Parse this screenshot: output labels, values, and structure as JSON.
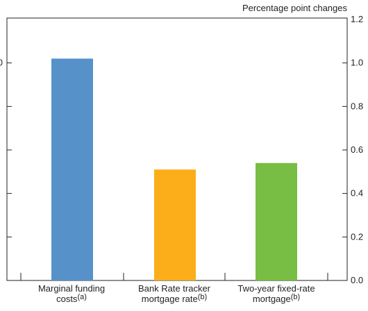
{
  "chart_data": {
    "type": "bar",
    "units_label": "Percentage point changes",
    "categories": [
      {
        "line1": "Marginal funding",
        "line2": "costs",
        "note": "(a)"
      },
      {
        "line1": "Bank Rate tracker",
        "line2": "mortgage rate",
        "note": "(b)"
      },
      {
        "line1": "Two-year fixed-rate",
        "line2": "mortgage",
        "note": "(b)"
      }
    ],
    "values": [
      1.02,
      0.51,
      0.54
    ],
    "colors": [
      "#5692c9",
      "#fbae1a",
      "#78be44"
    ],
    "ylim": [
      0,
      1.2
    ],
    "yticks": [
      "0.0",
      "0.2",
      "0.4",
      "0.6",
      "0.8",
      "1.0",
      "1.2"
    ],
    "left_tick_labels": [
      "",
      "",
      "",
      "",
      "",
      "1.0",
      ""
    ],
    "grid": false
  }
}
